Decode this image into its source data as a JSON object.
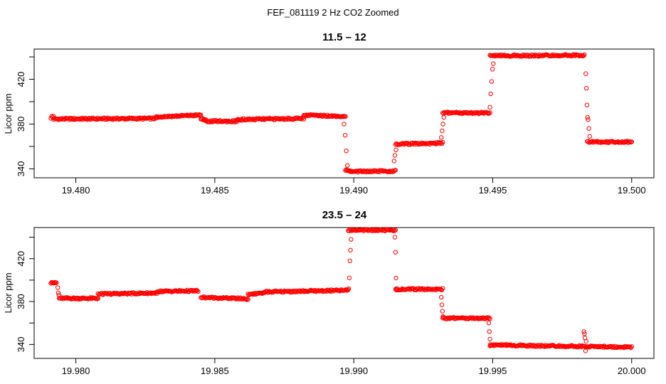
{
  "figure_title": "FEF_081119  2 Hz CO2 Zoomed",
  "chart_data": [
    {
      "type": "scatter",
      "title": "11.5 – 12",
      "xlabel": "",
      "ylabel": "Licor ppm",
      "xlim": [
        19.4785,
        19.5008
      ],
      "ylim": [
        332,
        447
      ],
      "xticks": [
        19.48,
        19.485,
        19.49,
        19.495,
        19.5
      ],
      "xtick_labels": [
        "19.480",
        "19.485",
        "19.490",
        "19.495",
        "19.500"
      ],
      "yticks": [
        340,
        360,
        380,
        400,
        420,
        440
      ],
      "ytick_labels": [
        "340",
        "",
        "380",
        "",
        "420",
        ""
      ],
      "marker": "open-circle",
      "color": "#ff0000",
      "segments": [
        [
          19.4791,
          19.4792,
          386.0,
          387.0
        ],
        [
          19.4792,
          19.4829,
          384.5,
          385.0
        ],
        [
          19.4829,
          19.4845,
          386.5,
          388.0
        ],
        [
          19.4845,
          19.4847,
          385.0,
          383.5
        ],
        [
          19.4847,
          19.4858,
          382.5,
          382.5
        ],
        [
          19.4858,
          19.4882,
          384.0,
          385.0
        ],
        [
          19.4882,
          19.4897,
          388.0,
          387.0
        ],
        [
          19.4897,
          19.4899,
          339.0,
          338.0
        ],
        [
          19.4899,
          19.4915,
          337.5,
          338.0
        ],
        [
          19.4915,
          19.4932,
          362.0,
          363.0
        ],
        [
          19.4932,
          19.4949,
          390.0,
          390.0
        ],
        [
          19.4949,
          19.4983,
          441.0,
          441.5
        ],
        [
          19.4984,
          19.5,
          364.0,
          364.0
        ]
      ],
      "transitions": [
        [
          19.48965,
          380.0
        ],
        [
          19.48969,
          370.0
        ],
        [
          19.48973,
          356.0
        ],
        [
          19.48977,
          343.0
        ],
        [
          19.49145,
          347.0
        ],
        [
          19.49148,
          352.0
        ],
        [
          19.49152,
          357.0
        ],
        [
          19.49315,
          368.0
        ],
        [
          19.49318,
          374.0
        ],
        [
          19.49321,
          380.0
        ],
        [
          19.49324,
          386.0
        ],
        [
          19.4949,
          395.0
        ],
        [
          19.49493,
          407.0
        ],
        [
          19.49496,
          418.0
        ],
        [
          19.49499,
          429.0
        ],
        [
          19.49502,
          434.0
        ],
        [
          19.49835,
          425.0
        ],
        [
          19.49837,
          412.0
        ],
        [
          19.49839,
          397.0
        ],
        [
          19.49841,
          386.0
        ],
        [
          19.49843,
          384.0
        ],
        [
          19.49846,
          376.0
        ],
        [
          19.49849,
          369.0
        ]
      ]
    },
    {
      "type": "scatter",
      "title": "23.5 – 24",
      "xlabel": "",
      "ylabel": "Licor ppm",
      "xlim": [
        19.9785,
        20.0008
      ],
      "ylim": [
        327,
        449
      ],
      "xticks": [
        19.98,
        19.985,
        19.99,
        19.995,
        20.0
      ],
      "xtick_labels": [
        "19.980",
        "19.985",
        "19.990",
        "19.995",
        "20.000"
      ],
      "yticks": [
        340,
        360,
        380,
        400,
        420,
        440
      ],
      "ytick_labels": [
        "340",
        "",
        "380",
        "",
        "420",
        ""
      ],
      "marker": "open-circle",
      "color": "#ff0000",
      "segments": [
        [
          19.9791,
          19.9793,
          397.5,
          397.5
        ],
        [
          19.9794,
          19.9808,
          383.0,
          383.0
        ],
        [
          19.9808,
          19.9829,
          387.0,
          388.0
        ],
        [
          19.9829,
          19.9844,
          389.5,
          390.0
        ],
        [
          19.9845,
          19.9862,
          384.0,
          382.5
        ],
        [
          19.9862,
          19.9868,
          386.5,
          388.0
        ],
        [
          19.9868,
          19.9898,
          389.0,
          390.5
        ],
        [
          19.9898,
          19.9915,
          446.5,
          446.5
        ],
        [
          19.9915,
          19.9932,
          391.5,
          391.5
        ],
        [
          19.9932,
          19.9949,
          364.5,
          364.5
        ],
        [
          19.9949,
          20.0,
          339.5,
          337.5
        ]
      ],
      "transitions": [
        [
          19.97935,
          393.0
        ],
        [
          19.97937,
          388.0
        ],
        [
          19.97939,
          386.0
        ],
        [
          19.98982,
          392.0
        ],
        [
          19.98984,
          402.0
        ],
        [
          19.98986,
          418.0
        ],
        [
          19.98988,
          428.0
        ],
        [
          19.9899,
          438.0
        ],
        [
          19.99148,
          440.0
        ],
        [
          19.9915,
          426.0
        ],
        [
          19.99152,
          402.0
        ],
        [
          19.99154,
          392.0
        ],
        [
          19.99315,
          384.0
        ],
        [
          19.99317,
          377.0
        ],
        [
          19.99319,
          371.0
        ],
        [
          19.99321,
          366.0
        ],
        [
          19.99486,
          360.0
        ],
        [
          19.99488,
          352.0
        ],
        [
          19.9949,
          345.0
        ],
        [
          19.99492,
          340.0
        ],
        [
          19.99828,
          352.0
        ],
        [
          19.9983,
          350.0
        ],
        [
          19.99832,
          346.0
        ],
        [
          19.99834,
          334.0
        ],
        [
          19.99836,
          343.0
        ]
      ]
    }
  ]
}
